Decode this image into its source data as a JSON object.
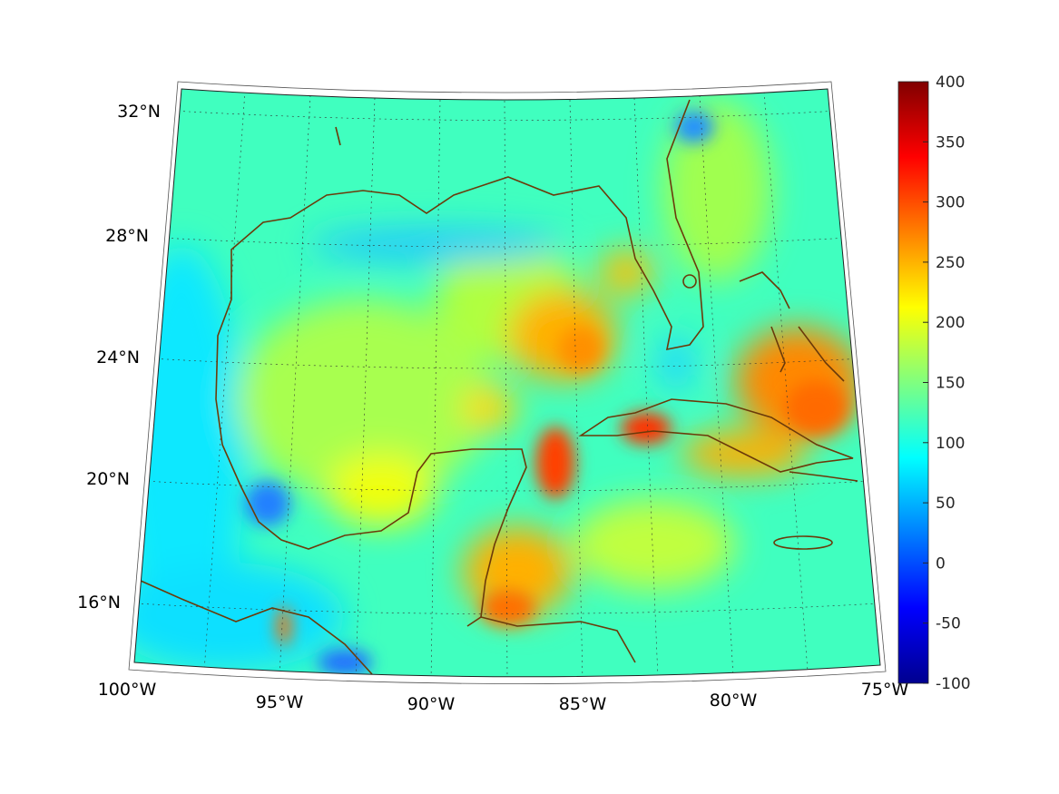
{
  "chart_data": {
    "type": "heatmap",
    "title": "",
    "projection": "conic map of the Gulf of Mexico and Caribbean",
    "lon_range": [
      -100,
      -75
    ],
    "lat_range": [
      14,
      33
    ],
    "lon_ticks": [
      "100°W",
      "95°W",
      "90°W",
      "85°W",
      "80°W",
      "75°W"
    ],
    "lat_ticks": [
      "32°N",
      "28°N",
      "24°N",
      "20°N",
      "16°N"
    ],
    "colormap": "jet",
    "clim": [
      -100,
      400
    ],
    "colorbar_ticks": [
      "400",
      "350",
      "300",
      "250",
      "200",
      "150",
      "100",
      "50",
      "0",
      "-50",
      "-100"
    ],
    "background_value_approx": 140,
    "features": [
      {
        "region": "Southeast Gulf / Yucatan Channel (~85.5°W, 21°N)",
        "value_approx": 290
      },
      {
        "region": "Eastern Gulf (~86°W, 25°N)",
        "value_approx": 250
      },
      {
        "region": "Cuba interior (~82.5°W, 22°N)",
        "value_approx": 300
      },
      {
        "region": "Bahamas / north of Cuba (~77°W, 23°N)",
        "value_approx": 270
      },
      {
        "region": "Belize / Honduras (~88°W, 16.5°N)",
        "value_approx": 250
      },
      {
        "region": "Bay of Campeche west (~95°W, 19°N)",
        "value_approx": 60
      },
      {
        "region": "Georgia coast offshore (~80°W, 31.5°N)",
        "value_approx": 60
      },
      {
        "region": "Isthmus of Tehuantepec (~95°W, 15.5°N)",
        "value_approx": 260
      }
    ]
  }
}
